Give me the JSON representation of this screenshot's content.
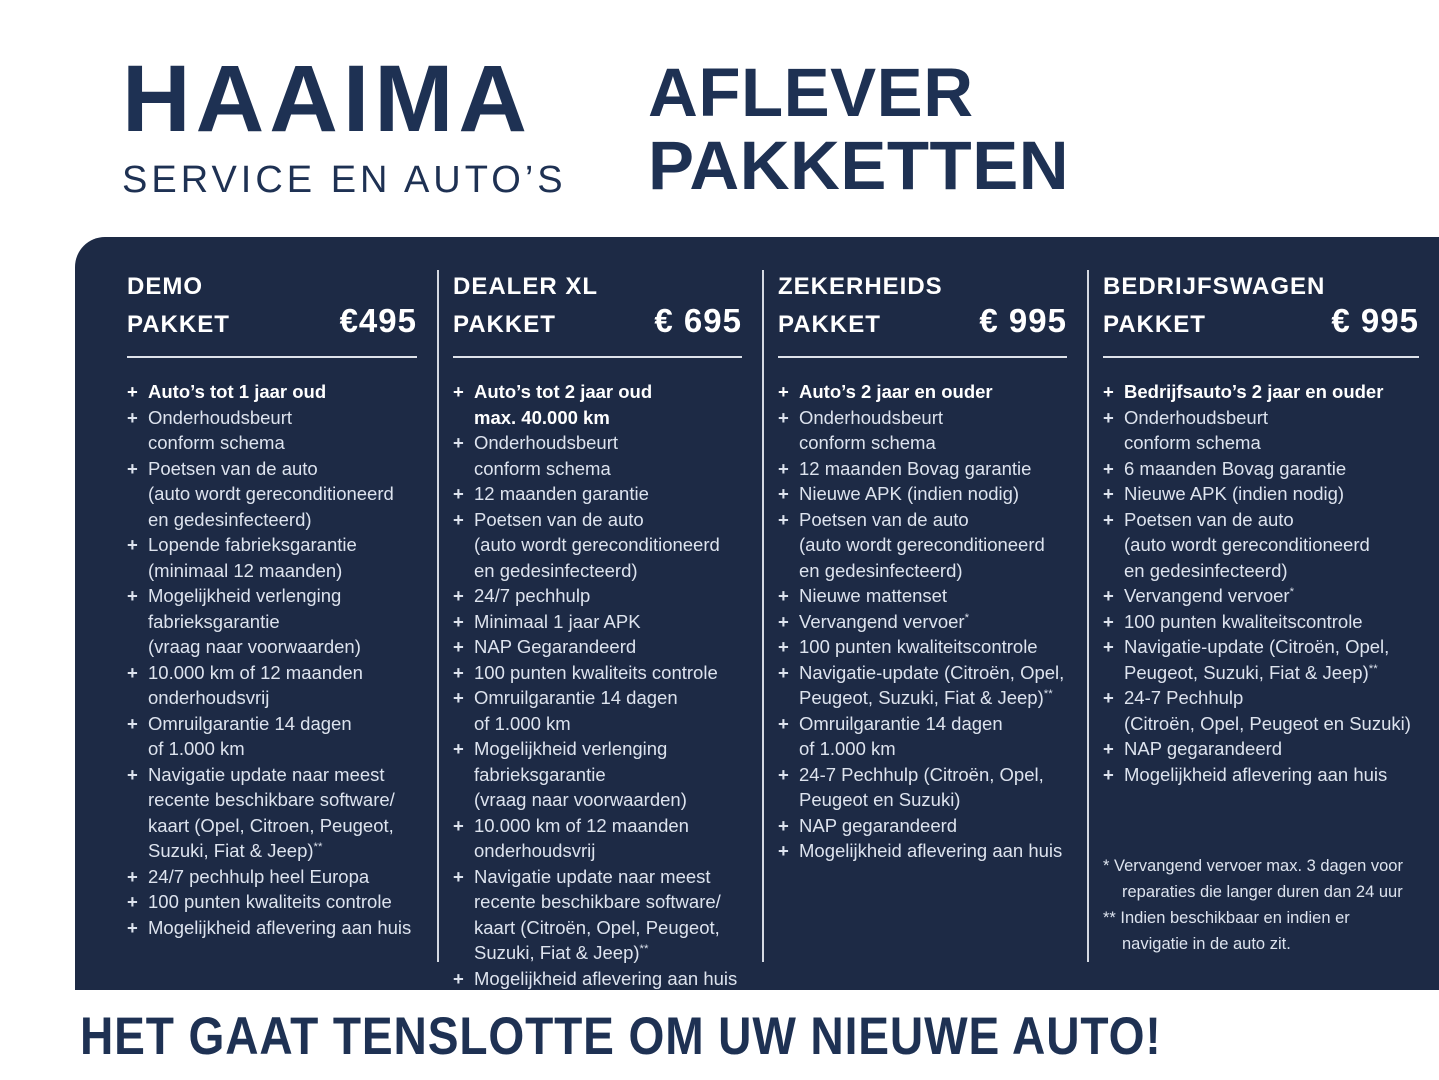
{
  "colors": {
    "panel_bg": "#1d2a45",
    "brand_navy": "#1e3153",
    "text_light": "#dde3ee",
    "text_white": "#ffffff",
    "rule_light": "#e9ecf3"
  },
  "header": {
    "logo_title": "HAAIMA",
    "logo_subtitle": "SERVICE EN AUTO’S",
    "page_title_line1": "AFLEVER",
    "page_title_line2": "PAKKETTEN"
  },
  "packages": [
    {
      "name_line1": "DEMO",
      "name_line2": "PAKKET",
      "price": "€495",
      "items": [
        {
          "bold": true,
          "lines": [
            "Auto’s tot 1 jaar oud"
          ]
        },
        {
          "bold": false,
          "lines": [
            "Onderhoudsbeurt",
            "conform schema"
          ]
        },
        {
          "bold": false,
          "lines": [
            "Poetsen van de auto",
            "(auto wordt gereconditioneerd",
            "en gedesinfecteerd)"
          ]
        },
        {
          "bold": false,
          "lines": [
            "Lopende fabrieksgarantie",
            "(minimaal 12 maanden)"
          ]
        },
        {
          "bold": false,
          "lines": [
            "Mogelijkheid verlenging",
            "fabrieksgarantie",
            "(vraag naar voorwaarden)"
          ]
        },
        {
          "bold": false,
          "lines": [
            "10.000 km of 12 maanden",
            "onderhoudsvrij"
          ]
        },
        {
          "bold": false,
          "lines": [
            "Omruilgarantie 14 dagen",
            "of 1.000 km"
          ]
        },
        {
          "bold": false,
          "lines": [
            "Navigatie update naar meest",
            "recente beschikbare software/",
            "kaart (Opel, Citroen,  Peugeot,",
            "Suzuki, Fiat & Jeep)**"
          ]
        },
        {
          "bold": false,
          "lines": [
            "24/7 pechhulp heel Europa"
          ]
        },
        {
          "bold": false,
          "lines": [
            "100 punten kwaliteits controle"
          ]
        },
        {
          "bold": false,
          "lines": [
            "Mogelijkheid aflevering aan huis"
          ]
        }
      ]
    },
    {
      "name_line1": "DEALER XL",
      "name_line2": "PAKKET",
      "price": "€ 695",
      "items": [
        {
          "bold": true,
          "lines": [
            "Auto’s tot 2 jaar oud",
            "max. 40.000 km"
          ]
        },
        {
          "bold": false,
          "lines": [
            "Onderhoudsbeurt",
            "conform schema"
          ]
        },
        {
          "bold": false,
          "lines": [
            "12 maanden garantie"
          ]
        },
        {
          "bold": false,
          "lines": [
            "Poetsen van de auto",
            "(auto wordt gereconditioneerd",
            "en gedesinfecteerd)"
          ]
        },
        {
          "bold": false,
          "lines": [
            "24/7 pechhulp"
          ]
        },
        {
          "bold": false,
          "lines": [
            "Minimaal 1 jaar APK"
          ]
        },
        {
          "bold": false,
          "lines": [
            "NAP Gegarandeerd"
          ]
        },
        {
          "bold": false,
          "lines": [
            "100 punten kwaliteits controle"
          ]
        },
        {
          "bold": false,
          "lines": [
            "Omruilgarantie 14 dagen",
            "of 1.000 km"
          ]
        },
        {
          "bold": false,
          "lines": [
            "Mogelijkheid verlenging",
            "fabrieksgarantie",
            "(vraag naar voorwaarden)"
          ]
        },
        {
          "bold": false,
          "lines": [
            "10.000 km of 12 maanden",
            "onderhoudsvrij"
          ]
        },
        {
          "bold": false,
          "lines": [
            "Navigatie update naar meest",
            "recente beschikbare software/",
            "kaart (Citroën, Opel, Peugeot,",
            "Suzuki, Fiat & Jeep)**"
          ]
        },
        {
          "bold": false,
          "lines": [
            "Mogelijkheid aflevering aan huis"
          ]
        }
      ]
    },
    {
      "name_line1": "ZEKERHEIDS",
      "name_line2": "PAKKET",
      "price": "€ 995",
      "items": [
        {
          "bold": true,
          "lines": [
            "Auto’s 2 jaar en ouder"
          ]
        },
        {
          "bold": false,
          "lines": [
            "Onderhoudsbeurt",
            "conform schema"
          ]
        },
        {
          "bold": false,
          "lines": [
            "12 maanden Bovag garantie"
          ]
        },
        {
          "bold": false,
          "lines": [
            "Nieuwe APK (indien nodig)"
          ]
        },
        {
          "bold": false,
          "lines": [
            "Poetsen van de auto",
            "(auto wordt gereconditioneerd",
            "en gedesinfecteerd)"
          ]
        },
        {
          "bold": false,
          "lines": [
            "Nieuwe mattenset"
          ]
        },
        {
          "bold": false,
          "lines": [
            "Vervangend vervoer*"
          ]
        },
        {
          "bold": false,
          "lines": [
            "100 punten kwaliteitscontrole"
          ]
        },
        {
          "bold": false,
          "lines": [
            "Navigatie-update (Citroën, Opel,",
            "Peugeot, Suzuki, Fiat & Jeep)**"
          ]
        },
        {
          "bold": false,
          "lines": [
            "Omruilgarantie 14 dagen",
            "of 1.000 km"
          ]
        },
        {
          "bold": false,
          "lines": [
            "24-7 Pechhulp (Citroën, Opel,",
            "Peugeot en Suzuki)"
          ]
        },
        {
          "bold": false,
          "lines": [
            "NAP gegarandeerd"
          ]
        },
        {
          "bold": false,
          "lines": [
            "Mogelijkheid aflevering aan huis"
          ]
        }
      ]
    },
    {
      "name_line1": "BEDRIJFSWAGEN",
      "name_line2": "PAKKET",
      "price": "€ 995",
      "items": [
        {
          "bold": true,
          "lines": [
            "Bedrijfsauto’s 2 jaar en ouder"
          ]
        },
        {
          "bold": false,
          "lines": [
            "Onderhoudsbeurt",
            "conform schema"
          ]
        },
        {
          "bold": false,
          "lines": [
            "6 maanden Bovag garantie"
          ]
        },
        {
          "bold": false,
          "lines": [
            "Nieuwe APK (indien nodig)"
          ]
        },
        {
          "bold": false,
          "lines": [
            "Poetsen van de auto",
            "(auto wordt gereconditioneerd",
            "en gedesinfecteerd)"
          ]
        },
        {
          "bold": false,
          "lines": [
            "Vervangend vervoer*"
          ]
        },
        {
          "bold": false,
          "lines": [
            "100 punten kwaliteitscontrole"
          ]
        },
        {
          "bold": false,
          "lines": [
            "Navigatie-update (Citroën, Opel,",
            "Peugeot, Suzuki, Fiat & Jeep)**"
          ]
        },
        {
          "bold": false,
          "lines": [
            "24-7 Pechhulp",
            "(Citroën, Opel, Peugeot en Suzuki)"
          ]
        },
        {
          "bold": false,
          "lines": [
            "NAP gegarandeerd"
          ]
        },
        {
          "bold": false,
          "lines": [
            "Mogelijkheid aflevering aan huis"
          ]
        }
      ]
    }
  ],
  "footnotes": [
    {
      "marker": "*",
      "lines": [
        "Vervangend vervoer max. 3 dagen voor",
        "reparaties die langer duren dan 24 uur"
      ]
    },
    {
      "marker": "**",
      "lines": [
        "Indien beschikbaar en indien er",
        "navigatie in de auto zit."
      ]
    }
  ],
  "footer": {
    "tagline": "HET GAAT TENSLOTTE OM UW NIEUWE AUTO!"
  }
}
